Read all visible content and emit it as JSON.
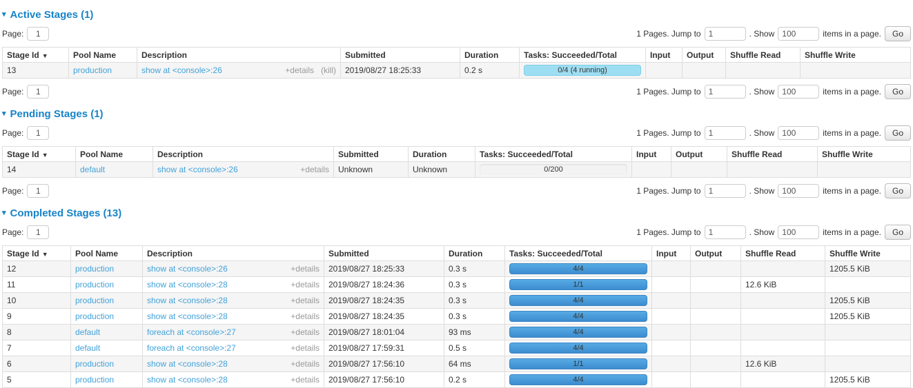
{
  "colors": {
    "heading": "#1884c8",
    "link": "#42a2d8",
    "text": "#333333",
    "muted": "#999999",
    "bar_running": "#9edef2",
    "bar_running_border": "#7ecde9",
    "bar_done_top": "#56abe4",
    "bar_done_bottom": "#3c8ccf",
    "bar_done_border": "#3a85c4",
    "row_stripe": "#f5f5f5",
    "table_border": "#dddddd"
  },
  "icons": {
    "collapse_arrow": "▾",
    "sort_arrow": "▼"
  },
  "columns": [
    "Stage Id",
    "Pool Name",
    "Description",
    "Submitted",
    "Duration",
    "Tasks: Succeeded/Total",
    "Input",
    "Output",
    "Shuffle Read",
    "Shuffle Write"
  ],
  "sections": [
    {
      "title": "Active Stages (1)",
      "pagination": {
        "page_label": "Page:",
        "page_value": "1",
        "pages_text": "1 Pages. Jump to",
        "jump_value": "1",
        "show_label": ". Show",
        "show_value": "100",
        "items_text": "items in a page.",
        "go_label": "Go"
      },
      "has_bottom_pager": true,
      "rows": [
        {
          "stage_id": "13",
          "pool_name": "production",
          "description": "show at <console>:26",
          "details_label": "+details",
          "kill_label": "(kill)",
          "submitted": "2019/08/27 18:25:33",
          "duration": "0.2 s",
          "tasks": {
            "label": "0/4 (4 running)",
            "state": "running"
          },
          "input": "",
          "output": "",
          "shuffle_read": "",
          "shuffle_write": ""
        }
      ]
    },
    {
      "title": "Pending Stages (1)",
      "pagination": {
        "page_label": "Page:",
        "page_value": "1",
        "pages_text": "1 Pages. Jump to",
        "jump_value": "1",
        "show_label": ". Show",
        "show_value": "100",
        "items_text": "items in a page.",
        "go_label": "Go"
      },
      "has_bottom_pager": true,
      "rows": [
        {
          "stage_id": "14",
          "pool_name": "default",
          "description": "show at <console>:26",
          "details_label": "+details",
          "kill_label": "",
          "submitted": "Unknown",
          "duration": "Unknown",
          "tasks": {
            "label": "0/200",
            "state": "empty"
          },
          "input": "",
          "output": "",
          "shuffle_read": "",
          "shuffle_write": ""
        }
      ]
    },
    {
      "title": "Completed Stages (13)",
      "pagination": {
        "page_label": "Page:",
        "page_value": "1",
        "pages_text": "1 Pages. Jump to",
        "jump_value": "1",
        "show_label": ". Show",
        "show_value": "100",
        "items_text": "items in a page.",
        "go_label": "Go"
      },
      "has_bottom_pager": false,
      "rows": [
        {
          "stage_id": "12",
          "pool_name": "production",
          "description": "show at <console>:26",
          "details_label": "+details",
          "kill_label": "",
          "submitted": "2019/08/27 18:25:33",
          "duration": "0.3 s",
          "tasks": {
            "label": "4/4",
            "state": "done"
          },
          "input": "",
          "output": "",
          "shuffle_read": "",
          "shuffle_write": "1205.5 KiB"
        },
        {
          "stage_id": "11",
          "pool_name": "production",
          "description": "show at <console>:28",
          "details_label": "+details",
          "kill_label": "",
          "submitted": "2019/08/27 18:24:36",
          "duration": "0.3 s",
          "tasks": {
            "label": "1/1",
            "state": "done"
          },
          "input": "",
          "output": "",
          "shuffle_read": "12.6 KiB",
          "shuffle_write": ""
        },
        {
          "stage_id": "10",
          "pool_name": "production",
          "description": "show at <console>:28",
          "details_label": "+details",
          "kill_label": "",
          "submitted": "2019/08/27 18:24:35",
          "duration": "0.3 s",
          "tasks": {
            "label": "4/4",
            "state": "done"
          },
          "input": "",
          "output": "",
          "shuffle_read": "",
          "shuffle_write": "1205.5 KiB"
        },
        {
          "stage_id": "9",
          "pool_name": "production",
          "description": "show at <console>:28",
          "details_label": "+details",
          "kill_label": "",
          "submitted": "2019/08/27 18:24:35",
          "duration": "0.3 s",
          "tasks": {
            "label": "4/4",
            "state": "done"
          },
          "input": "",
          "output": "",
          "shuffle_read": "",
          "shuffle_write": "1205.5 KiB"
        },
        {
          "stage_id": "8",
          "pool_name": "default",
          "description": "foreach at <console>:27",
          "details_label": "+details",
          "kill_label": "",
          "submitted": "2019/08/27 18:01:04",
          "duration": "93 ms",
          "tasks": {
            "label": "4/4",
            "state": "done"
          },
          "input": "",
          "output": "",
          "shuffle_read": "",
          "shuffle_write": ""
        },
        {
          "stage_id": "7",
          "pool_name": "default",
          "description": "foreach at <console>:27",
          "details_label": "+details",
          "kill_label": "",
          "submitted": "2019/08/27 17:59:31",
          "duration": "0.5 s",
          "tasks": {
            "label": "4/4",
            "state": "done"
          },
          "input": "",
          "output": "",
          "shuffle_read": "",
          "shuffle_write": ""
        },
        {
          "stage_id": "6",
          "pool_name": "production",
          "description": "show at <console>:28",
          "details_label": "+details",
          "kill_label": "",
          "submitted": "2019/08/27 17:56:10",
          "duration": "64 ms",
          "tasks": {
            "label": "1/1",
            "state": "done"
          },
          "input": "",
          "output": "",
          "shuffle_read": "12.6 KiB",
          "shuffle_write": ""
        },
        {
          "stage_id": "5",
          "pool_name": "production",
          "description": "show at <console>:28",
          "details_label": "+details",
          "kill_label": "",
          "submitted": "2019/08/27 17:56:10",
          "duration": "0.2 s",
          "tasks": {
            "label": "4/4",
            "state": "done"
          },
          "input": "",
          "output": "",
          "shuffle_read": "",
          "shuffle_write": "1205.5 KiB"
        }
      ]
    }
  ]
}
